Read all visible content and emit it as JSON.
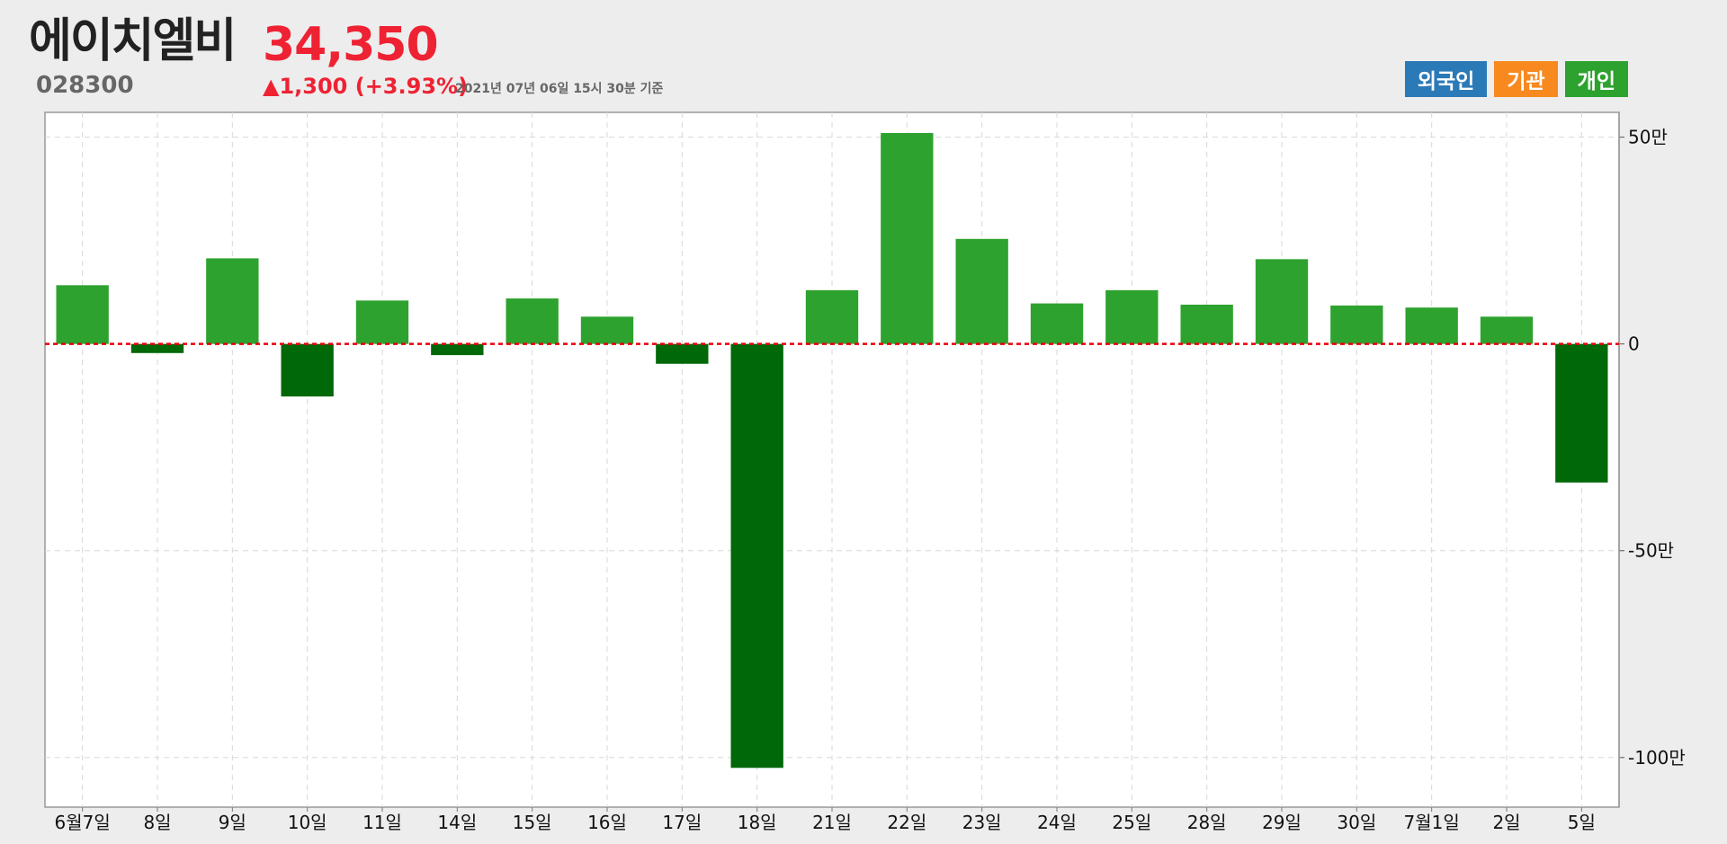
{
  "header": {
    "stock_name": "에이치엘비",
    "stock_code": "028300",
    "price": "34,350",
    "change": "▲1,300 (+3.93%)",
    "timestamp": "2021년 07년 06일 15시 30분 기준"
  },
  "legend": {
    "items": [
      {
        "label": "외국인",
        "color": "#2b7ab8"
      },
      {
        "label": "기관",
        "color": "#f7891f"
      },
      {
        "label": "개인",
        "color": "#2ea22e"
      }
    ]
  },
  "colors": {
    "positive_bar": "#2ea22e",
    "negative_bar": "#006808",
    "zero_line": "#e8000a",
    "grid": "#d8d8d8",
    "plot_background": "#ffffff"
  },
  "chart_data": {
    "type": "bar",
    "title": "",
    "xlabel": "",
    "ylabel": "",
    "categories": [
      "6월7일",
      "8일",
      "9일",
      "10일",
      "11일",
      "14일",
      "15일",
      "16일",
      "17일",
      "18일",
      "21일",
      "22일",
      "23일",
      "24일",
      "25일",
      "28일",
      "29일",
      "30일",
      "7월1일",
      "2일",
      "5일"
    ],
    "series": [
      {
        "values": [
          142000,
          -22000,
          207000,
          -127000,
          105000,
          -27000,
          110000,
          66000,
          -48000,
          -1025000,
          130000,
          510000,
          254000,
          98000,
          130000,
          95000,
          205000,
          93000,
          88000,
          66000,
          -335000
        ]
      }
    ],
    "ylim": [
      -1120000,
      560000
    ],
    "y_ticks": [
      {
        "value": 500000,
        "label": "50만"
      },
      {
        "value": 0,
        "label": "0"
      },
      {
        "value": -500000,
        "label": "-50만"
      },
      {
        "value": -1000000,
        "label": "-100만"
      }
    ],
    "grid": true,
    "legend_position": "top-right"
  }
}
